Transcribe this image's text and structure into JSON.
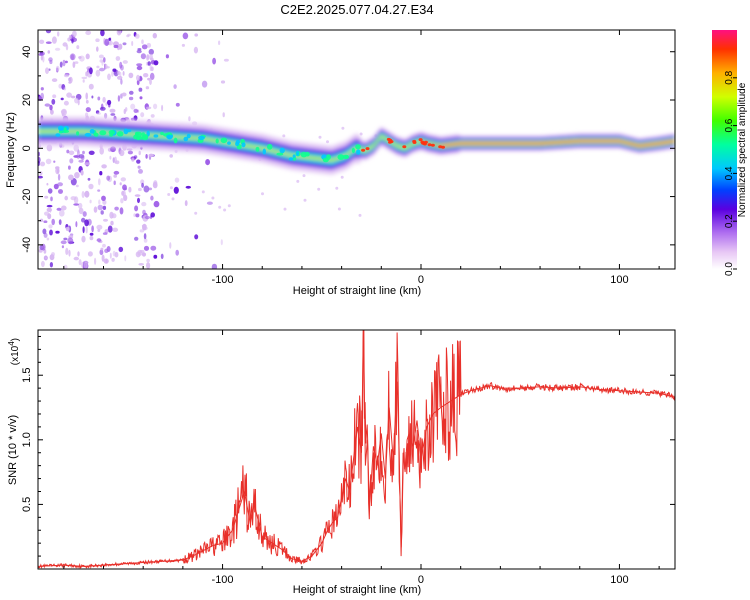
{
  "title": "C2E2.2025.077.04.27.E34",
  "colors": {
    "snr_line": "#e8302a",
    "frame": "#000000"
  },
  "chart_data": [
    {
      "type": "heatmap",
      "xlabel": "Height of straight line (km)",
      "ylabel": "Frequency (Hz)",
      "xlim": [
        -193,
        128
      ],
      "ylim": [
        -50,
        49
      ],
      "xticks": [
        -100,
        0,
        100
      ],
      "yticks": [
        -40,
        -20,
        0,
        20,
        40
      ],
      "ridge": {
        "description_free_points": true,
        "x": [
          -190,
          -170,
          -150,
          -130,
          -110,
          -95,
          -80,
          -65,
          -55,
          -45,
          -38,
          -33,
          -28,
          -24,
          -20,
          -16,
          -12,
          -8,
          -4,
          0,
          4,
          10,
          20,
          40,
          60,
          80,
          100,
          110,
          120,
          128
        ],
        "y": [
          7,
          7,
          6,
          5,
          4,
          2,
          0,
          -3,
          -4,
          -5,
          -3,
          0,
          -1,
          1,
          5,
          3,
          1,
          0,
          2,
          3,
          2,
          1,
          2,
          2,
          2,
          3,
          3,
          1,
          2,
          3
        ]
      },
      "colorbar": {
        "label": "Normalized spectral amplitude",
        "range": [
          0,
          1
        ],
        "ticks": [
          0.0,
          0.2,
          0.4,
          0.6,
          0.8
        ]
      }
    },
    {
      "type": "line",
      "xlabel": "Height of straight line (km)",
      "ylabel": "SNR (10 * v/v)",
      "multiplier": "(x10",
      "multiplier_exp": "4",
      "multiplier_close": ")",
      "xlim": [
        -193,
        128
      ],
      "ylim": [
        0,
        1.85
      ],
      "xticks": [
        -100,
        0,
        100
      ],
      "yticks": [
        0.5,
        1.0,
        1.5
      ],
      "series": [
        {
          "x": [
            -193,
            -180,
            -170,
            -160,
            -150,
            -140,
            -130,
            -120,
            -115,
            -110,
            -105,
            -100,
            -95,
            -92,
            -89,
            -86,
            -84,
            -80,
            -75,
            -70,
            -65,
            -60,
            -55,
            -50,
            -47,
            -45,
            -42,
            -40,
            -38,
            -36,
            -34,
            -32,
            -30,
            -29,
            -28,
            -27,
            -26,
            -25,
            -24,
            -22,
            -20,
            -18,
            -16,
            -14,
            -12,
            -11,
            -10,
            -9,
            -8,
            -7,
            -6,
            -4,
            -2,
            0,
            3,
            6,
            10,
            15,
            20,
            25,
            30,
            35,
            40,
            50,
            60,
            70,
            80,
            90,
            100,
            110,
            120,
            128
          ],
          "y": [
            0.02,
            0.03,
            0.02,
            0.03,
            0.04,
            0.05,
            0.06,
            0.07,
            0.1,
            0.14,
            0.18,
            0.2,
            0.3,
            0.45,
            0.6,
            0.35,
            0.5,
            0.25,
            0.2,
            0.15,
            0.08,
            0.06,
            0.1,
            0.2,
            0.3,
            0.35,
            0.4,
            0.55,
            0.7,
            0.6,
            0.85,
            1.1,
            0.9,
            1.85,
            0.8,
            1.0,
            0.5,
            0.7,
            0.95,
            0.8,
            1.05,
            0.7,
            1.25,
            0.85,
            1.45,
            0.9,
            0.1,
            0.9,
            0.75,
            1.0,
            1.05,
            0.95,
            1.15,
            0.85,
            1.1,
            1.2,
            1.25,
            1.3,
            1.35,
            1.38,
            1.4,
            1.42,
            1.4,
            1.4,
            1.41,
            1.4,
            1.41,
            1.39,
            1.38,
            1.37,
            1.36,
            1.33
          ]
        }
      ]
    }
  ]
}
